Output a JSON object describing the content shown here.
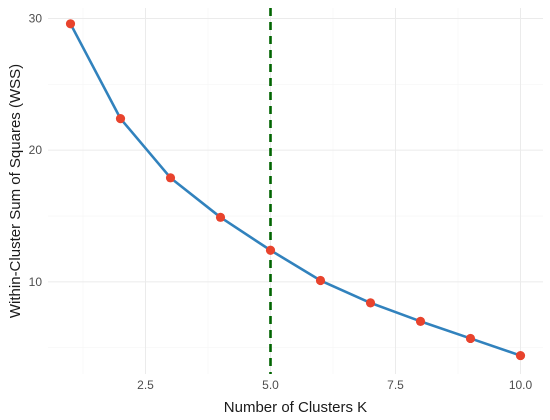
{
  "chart_data": {
    "type": "line",
    "xlabel": "Number of Clusters K",
    "ylabel": "Within-Cluster Sum of Squares (WSS)",
    "x": [
      1,
      2,
      3,
      4,
      5,
      6,
      7,
      8,
      9,
      10
    ],
    "series": [
      {
        "values": [
          29.6,
          22.4,
          17.9,
          14.9,
          12.4,
          10.1,
          8.4,
          7.0,
          5.7,
          4.4
        ]
      }
    ],
    "xlim": [
      0.55,
      10.45
    ],
    "ylim": [
      3.0,
      30.8
    ],
    "x_ticks": [
      2.5,
      5.0,
      7.5,
      10.0
    ],
    "x_tick_labels": [
      "2.5",
      "5.0",
      "7.5",
      "10.0"
    ],
    "y_ticks": [
      10,
      20,
      30
    ],
    "y_tick_labels": [
      "10",
      "20",
      "30"
    ],
    "reference_line": {
      "x": 5,
      "style": "dashed"
    },
    "grid": true,
    "colors": {
      "line": "#3182bd",
      "points": "#e8432d",
      "reference_line": "#006400"
    }
  }
}
